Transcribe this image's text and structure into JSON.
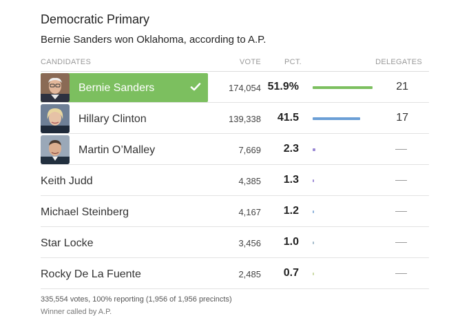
{
  "race": {
    "title": "Democratic Primary",
    "summary": "Bernie Sanders won Oklahoma, according to A.P."
  },
  "columns": {
    "candidates": "CANDIDATES",
    "vote": "VOTE",
    "pct": "PCT.",
    "delegates": "DELEGATES"
  },
  "colors": {
    "winner_green": "#7cbf5f",
    "sanders_bar": "#7cbf5f",
    "clinton_bar": "#6b9fd6",
    "omalley_bar": "#9a88d4"
  },
  "candidates": [
    {
      "name": "Bernie Sanders",
      "votes": "174,054",
      "pct": "51.9%",
      "pct_value": 51.9,
      "delegates": "21",
      "winner": true,
      "photo": "sanders-photo",
      "bar_color": "#7cbf5f"
    },
    {
      "name": "Hillary Clinton",
      "votes": "139,338",
      "pct": "41.5",
      "pct_value": 41.5,
      "delegates": "17",
      "winner": false,
      "photo": "clinton-photo",
      "bar_color": "#6b9fd6"
    },
    {
      "name": "Martin O’Malley",
      "votes": "7,669",
      "pct": "2.3",
      "pct_value": 2.3,
      "delegates": "",
      "winner": false,
      "photo": "omalley-photo",
      "bar_color": "#9a88d4"
    },
    {
      "name": "Keith Judd",
      "votes": "4,385",
      "pct": "1.3",
      "pct_value": 1.3,
      "delegates": "",
      "winner": false,
      "photo": "",
      "bar_color": "#9a88d4"
    },
    {
      "name": "Michael Steinberg",
      "votes": "4,167",
      "pct": "1.2",
      "pct_value": 1.2,
      "delegates": "",
      "winner": false,
      "photo": "",
      "bar_color": "#8ab0d8"
    },
    {
      "name": "Star Locke",
      "votes": "3,456",
      "pct": "1.0",
      "pct_value": 1.0,
      "delegates": "",
      "winner": false,
      "photo": "",
      "bar_color": "#a0b8c8"
    },
    {
      "name": "Rocky De La Fuente",
      "votes": "2,485",
      "pct": "0.7",
      "pct_value": 0.7,
      "delegates": "",
      "winner": false,
      "photo": "",
      "bar_color": "#c8d8a0"
    }
  ],
  "footer": {
    "reporting": "335,554 votes, 100% reporting (1,956 of 1,956 precincts)",
    "called": "Winner called by A.P."
  }
}
